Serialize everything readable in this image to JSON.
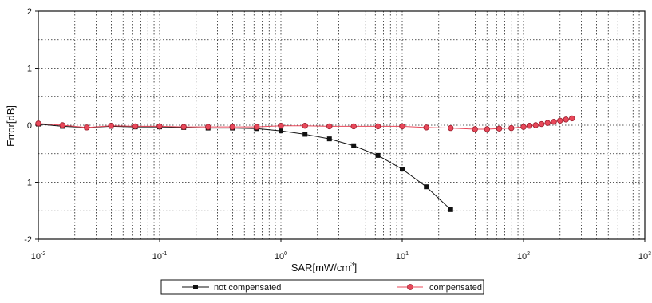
{
  "chart_data": {
    "type": "line",
    "title": "",
    "xlabel": "SAR[mW/cm",
    "xlabel_sup": "3",
    "xlabel_end": "]",
    "ylabel": "Error[dB]",
    "x_scale": "log",
    "xlim": [
      0.01,
      1000
    ],
    "ylim": [
      -2,
      2
    ],
    "x_ticks": [
      {
        "base": "10",
        "exp": "-2"
      },
      {
        "base": "10",
        "exp": "-1"
      },
      {
        "base": "10",
        "exp": "0"
      },
      {
        "base": "10",
        "exp": "1"
      },
      {
        "base": "10",
        "exp": "2"
      },
      {
        "base": "10",
        "exp": "3"
      }
    ],
    "y_ticks": [
      "2",
      "1",
      "0",
      "-1",
      "-2"
    ],
    "grid": true,
    "legend_position": "bottom",
    "series": [
      {
        "name": "not compensated",
        "color": "#111111",
        "marker": "square",
        "x": [
          0.01,
          0.0158,
          0.0251,
          0.0398,
          0.0631,
          0.1,
          0.158,
          0.251,
          0.398,
          0.631,
          1,
          1.58,
          2.51,
          3.98,
          6.31,
          10,
          15.8,
          25.1
        ],
        "y": [
          0.02,
          -0.02,
          -0.04,
          -0.02,
          -0.03,
          -0.03,
          -0.04,
          -0.05,
          -0.05,
          -0.06,
          -0.1,
          -0.16,
          -0.24,
          -0.36,
          -0.53,
          -0.77,
          -1.08,
          -1.48
        ]
      },
      {
        "name": "compensated",
        "color": "#e8485a",
        "marker": "circle",
        "x": [
          0.01,
          0.0158,
          0.0251,
          0.0398,
          0.0631,
          0.1,
          0.158,
          0.251,
          0.398,
          0.631,
          1,
          1.58,
          2.51,
          3.98,
          6.31,
          10,
          15.8,
          25.1,
          39.8,
          50.1,
          63.1,
          79.4,
          100,
          112,
          126,
          141,
          158,
          178,
          200,
          224,
          251
        ],
        "y": [
          0.03,
          0.0,
          -0.04,
          -0.01,
          -0.02,
          -0.02,
          -0.03,
          -0.03,
          -0.03,
          -0.03,
          -0.01,
          -0.01,
          -0.02,
          -0.02,
          -0.02,
          -0.02,
          -0.04,
          -0.05,
          -0.07,
          -0.07,
          -0.06,
          -0.05,
          -0.03,
          -0.01,
          0.0,
          0.02,
          0.04,
          0.06,
          0.08,
          0.1,
          0.12
        ]
      }
    ]
  }
}
